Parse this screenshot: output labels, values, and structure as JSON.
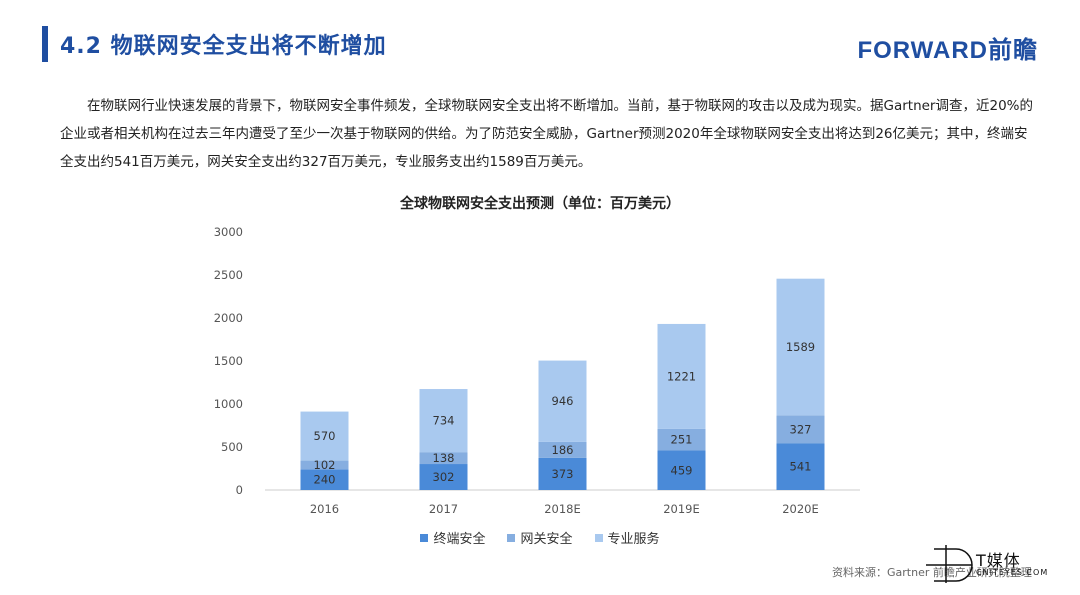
{
  "header": {
    "title": "4.2 物联网安全支出将不断增加",
    "brand": "FORWARD前瞻"
  },
  "paragraph": "在物联网行业快速发展的背景下，物联网安全事件频发，全球物联网安全支出将不断增加。当前，基于物联网的攻击以及成为现实。据Gartner调查，近20%的企业或者相关机构在过去三年内遭受了至少一次基于物联网的供给。为了防范安全威胁，Gartner预测2020年全球物联网安全支出将达到26亿美元；其中，终端安全支出约541百万美元，网关安全支出约327百万美元，专业服务支出约1589百万美元。",
  "chart_data": {
    "type": "bar",
    "stacked": true,
    "title": "全球物联网安全支出预测（单位：百万美元）",
    "categories": [
      "2016",
      "2017",
      "2018E",
      "2019E",
      "2020E"
    ],
    "series": [
      {
        "name": "终端安全",
        "values": [
          240,
          302,
          373,
          459,
          541
        ],
        "color": "#4a8ad8"
      },
      {
        "name": "网关安全",
        "values": [
          102,
          138,
          186,
          251,
          327
        ],
        "color": "#86aee0"
      },
      {
        "name": "专业服务",
        "values": [
          570,
          734,
          946,
          1221,
          1589
        ],
        "color": "#a9c9ef"
      }
    ],
    "ylim": [
      0,
      3000
    ],
    "yticks": [
      "0",
      "500",
      "1000",
      "1500",
      "2000",
      "2500",
      "3000"
    ],
    "grid": false,
    "legend": "bottom"
  },
  "source": "资料来源：Gartner 前瞻产业研究院整理",
  "watermark": {
    "cn": "T媒体",
    "en": "CNITEYES.COM",
    "tm": "™"
  }
}
